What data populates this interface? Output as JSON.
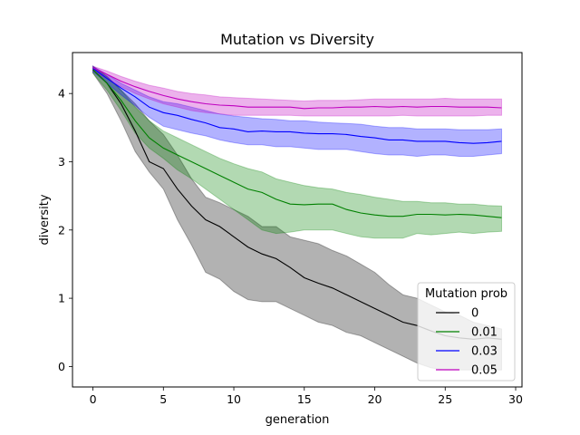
{
  "chart_data": {
    "type": "line",
    "title": "Mutation vs Diversity",
    "xlabel": "generation",
    "ylabel": "diversity",
    "xlim": [
      -1.45,
      30.45
    ],
    "ylim": [
      -0.3,
      4.6
    ],
    "xticks": [
      0,
      5,
      10,
      15,
      20,
      25,
      30
    ],
    "yticks": [
      0,
      1,
      2,
      3,
      4
    ],
    "grid": false,
    "legend": {
      "title": "Mutation prob",
      "placement": "lower-right"
    },
    "x": [
      0,
      1,
      2,
      3,
      4,
      5,
      6,
      7,
      8,
      9,
      10,
      11,
      12,
      13,
      14,
      15,
      16,
      17,
      18,
      19,
      20,
      21,
      22,
      23,
      24,
      25,
      26,
      27,
      28,
      29
    ],
    "series": [
      {
        "name": "0",
        "color": "#000000",
        "mean": [
          4.35,
          4.15,
          3.85,
          3.45,
          3.0,
          2.9,
          2.6,
          2.35,
          2.15,
          2.05,
          1.9,
          1.75,
          1.65,
          1.58,
          1.45,
          1.3,
          1.22,
          1.15,
          1.05,
          0.95,
          0.85,
          0.75,
          0.65,
          0.6,
          0.52,
          0.45,
          0.42,
          0.4,
          0.42,
          0.4
        ],
        "lower": [
          4.3,
          4.0,
          3.6,
          3.15,
          2.85,
          2.6,
          2.15,
          1.78,
          1.38,
          1.28,
          1.1,
          0.98,
          0.95,
          0.95,
          0.85,
          0.75,
          0.65,
          0.6,
          0.5,
          0.45,
          0.35,
          0.25,
          0.15,
          0.05,
          -0.02,
          -0.05,
          -0.05,
          -0.05,
          -0.05,
          -0.05
        ],
        "upper": [
          4.4,
          4.25,
          4.05,
          3.85,
          3.6,
          3.4,
          3.1,
          2.75,
          2.48,
          2.4,
          2.3,
          2.2,
          2.05,
          2.05,
          1.9,
          1.85,
          1.8,
          1.7,
          1.62,
          1.5,
          1.38,
          1.2,
          1.05,
          1.0,
          0.9,
          0.8,
          0.75,
          0.65,
          0.6,
          0.55
        ]
      },
      {
        "name": "0.01",
        "color": "#008000",
        "mean": [
          4.35,
          4.15,
          3.9,
          3.6,
          3.35,
          3.2,
          3.1,
          3.0,
          2.9,
          2.8,
          2.7,
          2.6,
          2.55,
          2.45,
          2.38,
          2.37,
          2.38,
          2.38,
          2.3,
          2.25,
          2.22,
          2.2,
          2.2,
          2.23,
          2.23,
          2.22,
          2.23,
          2.22,
          2.2,
          2.18
        ],
        "lower": [
          4.3,
          4.05,
          3.75,
          3.42,
          3.2,
          3.05,
          2.88,
          2.75,
          2.6,
          2.45,
          2.3,
          2.15,
          2.0,
          1.95,
          1.97,
          2.0,
          2.0,
          2.0,
          1.95,
          1.9,
          1.88,
          1.88,
          1.88,
          1.95,
          1.93,
          1.95,
          1.97,
          1.95,
          1.97,
          1.98
        ],
        "upper": [
          4.4,
          4.25,
          4.05,
          3.8,
          3.6,
          3.45,
          3.35,
          3.25,
          3.15,
          3.05,
          2.97,
          2.9,
          2.85,
          2.75,
          2.7,
          2.65,
          2.62,
          2.6,
          2.55,
          2.52,
          2.48,
          2.45,
          2.42,
          2.42,
          2.4,
          2.4,
          2.38,
          2.38,
          2.36,
          2.35
        ]
      },
      {
        "name": "0.03",
        "color": "#0000ff",
        "mean": [
          4.37,
          4.22,
          4.08,
          3.95,
          3.8,
          3.72,
          3.68,
          3.62,
          3.57,
          3.5,
          3.48,
          3.44,
          3.45,
          3.44,
          3.44,
          3.42,
          3.41,
          3.41,
          3.4,
          3.37,
          3.35,
          3.32,
          3.32,
          3.3,
          3.3,
          3.3,
          3.28,
          3.27,
          3.28,
          3.3
        ],
        "lower": [
          4.32,
          4.15,
          3.98,
          3.82,
          3.65,
          3.52,
          3.47,
          3.42,
          3.38,
          3.32,
          3.28,
          3.25,
          3.25,
          3.22,
          3.22,
          3.2,
          3.18,
          3.18,
          3.18,
          3.15,
          3.12,
          3.1,
          3.1,
          3.08,
          3.1,
          3.1,
          3.08,
          3.08,
          3.1,
          3.12
        ],
        "upper": [
          4.4,
          4.28,
          4.15,
          4.05,
          3.95,
          3.88,
          3.85,
          3.8,
          3.75,
          3.7,
          3.67,
          3.65,
          3.63,
          3.62,
          3.6,
          3.6,
          3.58,
          3.57,
          3.56,
          3.55,
          3.52,
          3.5,
          3.5,
          3.48,
          3.48,
          3.48,
          3.47,
          3.47,
          3.47,
          3.48
        ]
      },
      {
        "name": "0.05",
        "color": "#bf00bf",
        "mean": [
          4.38,
          4.28,
          4.18,
          4.1,
          4.03,
          3.97,
          3.92,
          3.88,
          3.85,
          3.83,
          3.82,
          3.8,
          3.8,
          3.8,
          3.8,
          3.78,
          3.79,
          3.79,
          3.8,
          3.8,
          3.81,
          3.8,
          3.81,
          3.8,
          3.81,
          3.81,
          3.8,
          3.8,
          3.8,
          3.79
        ],
        "lower": [
          4.33,
          4.22,
          4.1,
          4.0,
          3.92,
          3.85,
          3.8,
          3.75,
          3.72,
          3.7,
          3.68,
          3.68,
          3.68,
          3.68,
          3.68,
          3.67,
          3.67,
          3.67,
          3.67,
          3.67,
          3.67,
          3.67,
          3.68,
          3.67,
          3.67,
          3.67,
          3.67,
          3.67,
          3.68,
          3.68
        ],
        "upper": [
          4.4,
          4.33,
          4.25,
          4.18,
          4.12,
          4.08,
          4.03,
          4.0,
          3.98,
          3.95,
          3.94,
          3.93,
          3.92,
          3.91,
          3.9,
          3.89,
          3.9,
          3.9,
          3.9,
          3.91,
          3.92,
          3.92,
          3.92,
          3.92,
          3.92,
          3.93,
          3.92,
          3.92,
          3.92,
          3.92
        ]
      }
    ]
  }
}
